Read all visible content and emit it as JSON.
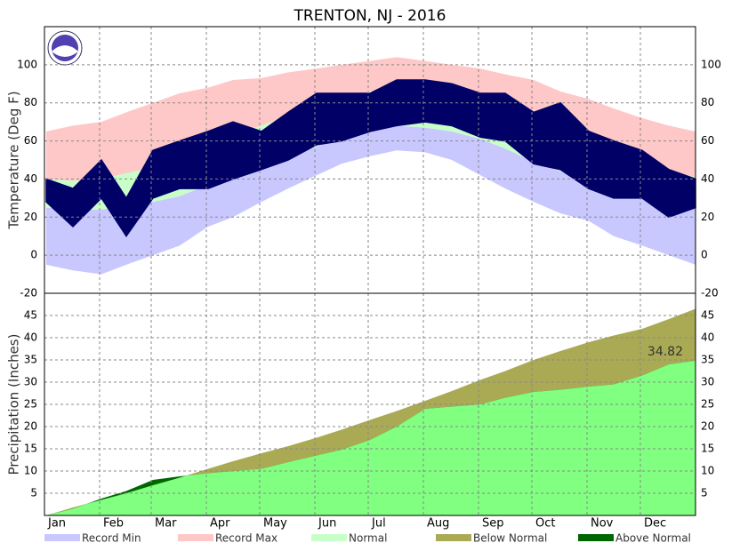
{
  "header": {
    "title": "TRENTON, NJ - 2016"
  },
  "x": [
    1,
    16,
    32,
    46,
    61,
    76,
    92,
    106,
    122,
    137,
    153,
    167,
    183,
    198,
    214,
    229,
    245,
    259,
    275,
    290,
    306,
    320,
    336,
    351,
    366
  ],
  "xlim": [
    0,
    366
  ],
  "xticks": [
    {
      "value": 0,
      "label": "Jan"
    },
    {
      "value": 31,
      "label": "Feb"
    },
    {
      "value": 60,
      "label": "Mar"
    },
    {
      "value": 91,
      "label": "Apr"
    },
    {
      "value": 121,
      "label": "May"
    },
    {
      "value": 152,
      "label": "Jun"
    },
    {
      "value": 182,
      "label": "Jul"
    },
    {
      "value": 213,
      "label": "Aug"
    },
    {
      "value": 244,
      "label": "Sep"
    },
    {
      "value": 274,
      "label": "Oct"
    },
    {
      "value": 305,
      "label": "Nov"
    },
    {
      "value": 335,
      "label": "Dec"
    }
  ],
  "legend": [
    {
      "name": "Record Min",
      "color": "#c8c8ff"
    },
    {
      "name": "Record Max",
      "color": "#ffc8c8"
    },
    {
      "name": "Normal",
      "color": "#c8ffc8"
    },
    {
      "name": "Below Normal",
      "color": "#aaaa55"
    },
    {
      "name": "Above Normal",
      "color": "#006600"
    }
  ],
  "chart_data": [
    {
      "type": "temperature",
      "ylabel": "Temperature (Deg F)",
      "ylim": [
        -20,
        120
      ],
      "yticks": [
        -20,
        0,
        20,
        40,
        60,
        80,
        100
      ],
      "grid": true,
      "record_max": [
        65,
        68,
        70,
        75,
        80,
        85,
        88,
        92,
        93,
        96,
        98,
        100,
        102,
        104,
        102,
        100,
        98,
        95,
        92,
        86,
        82,
        77,
        72,
        68,
        65
      ],
      "normal_high": [
        40,
        39,
        40,
        43,
        46,
        51,
        58,
        63,
        68,
        73,
        78,
        82,
        86,
        87,
        86,
        85,
        81,
        77,
        71,
        66,
        60,
        54,
        49,
        44,
        41
      ],
      "normal_low": [
        25,
        24,
        24,
        26,
        28,
        31,
        37,
        41,
        46,
        51,
        57,
        62,
        66,
        68,
        67,
        65,
        61,
        56,
        49,
        44,
        39,
        34,
        31,
        27,
        25
      ],
      "record_min": [
        -5,
        -8,
        -10,
        -5,
        0,
        5,
        15,
        20,
        28,
        35,
        42,
        48,
        52,
        55,
        54,
        50,
        42,
        35,
        28,
        22,
        18,
        10,
        5,
        0,
        -5
      ],
      "observed_high": [
        40,
        35,
        50,
        30,
        55,
        60,
        65,
        70,
        65,
        75,
        85,
        85,
        85,
        92,
        92,
        90,
        85,
        85,
        75,
        80,
        65,
        60,
        55,
        45,
        40
      ],
      "observed_low": [
        28,
        15,
        30,
        10,
        30,
        35,
        35,
        40,
        45,
        50,
        58,
        60,
        65,
        68,
        70,
        68,
        62,
        60,
        48,
        45,
        35,
        30,
        30,
        20,
        25
      ],
      "observed_color": "#000066"
    },
    {
      "type": "precipitation",
      "ylabel": "Precipitation (Inches)",
      "ylim": [
        0,
        50
      ],
      "yticks": [
        5,
        10,
        15,
        20,
        25,
        30,
        35,
        40,
        45
      ],
      "grid": true,
      "normal": [
        0,
        1.8,
        3.5,
        5,
        6.8,
        8.5,
        10.5,
        12.2,
        14,
        15.6,
        17.5,
        19.3,
        21.5,
        23.5,
        25.8,
        28,
        30.5,
        32.5,
        35,
        37,
        39,
        40.5,
        42,
        44.2,
        46.5
      ],
      "observed": [
        0,
        1.5,
        3.8,
        5.5,
        8,
        8.8,
        9.5,
        10,
        10.5,
        12,
        13.5,
        14.8,
        17,
        20,
        24,
        24.5,
        25,
        26.5,
        27.8,
        28.3,
        29,
        29.5,
        31.5,
        34,
        34.82
      ],
      "observed_color": "#80ff80"
    }
  ]
}
